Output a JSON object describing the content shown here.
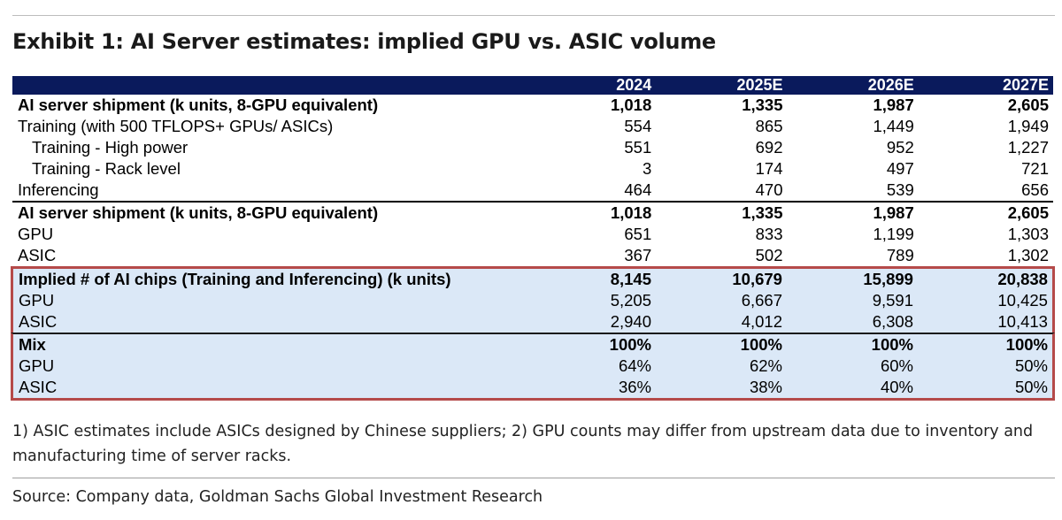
{
  "title": "Exhibit 1: AI Server estimates: implied GPU vs. ASIC volume",
  "columns": [
    "2024",
    "2025E",
    "2026E",
    "2027E"
  ],
  "section1": [
    {
      "label": "AI server shipment (k units, 8-GPU equivalent)",
      "values": [
        "1,018",
        "1,335",
        "1,987",
        "2,605"
      ]
    },
    {
      "label": "Training (with 500 TFLOPS+ GPUs/ ASICs)",
      "values": [
        "554",
        "865",
        "1,449",
        "1,949"
      ]
    },
    {
      "label": "Training - High power",
      "values": [
        "551",
        "692",
        "952",
        "1,227"
      ]
    },
    {
      "label": "Training - Rack level",
      "values": [
        "3",
        "174",
        "497",
        "721"
      ]
    },
    {
      "label": "Inferencing",
      "values": [
        "464",
        "470",
        "539",
        "656"
      ]
    }
  ],
  "section2": [
    {
      "label": "AI server shipment (k units, 8-GPU equivalent)",
      "values": [
        "1,018",
        "1,335",
        "1,987",
        "2,605"
      ]
    },
    {
      "label": "GPU",
      "values": [
        "651",
        "833",
        "1,199",
        "1,303"
      ]
    },
    {
      "label": "ASIC",
      "values": [
        "367",
        "502",
        "789",
        "1,302"
      ]
    }
  ],
  "section3": [
    {
      "label": "Implied # of AI chips (Training and Inferencing) (k units)",
      "values": [
        "8,145",
        "10,679",
        "15,899",
        "20,838"
      ]
    },
    {
      "label": "GPU",
      "values": [
        "5,205",
        "6,667",
        "9,591",
        "10,425"
      ]
    },
    {
      "label": "ASIC",
      "values": [
        "2,940",
        "4,012",
        "6,308",
        "10,413"
      ]
    }
  ],
  "section4": [
    {
      "label": "Mix",
      "values": [
        "100%",
        "100%",
        "100%",
        "100%"
      ]
    },
    {
      "label": "GPU",
      "values": [
        "64%",
        "62%",
        "60%",
        "50%"
      ]
    },
    {
      "label": "ASIC",
      "values": [
        "36%",
        "38%",
        "40%",
        "50%"
      ]
    }
  ],
  "notes": "1) ASIC estimates include ASICs designed by Chinese suppliers; 2) GPU counts may differ from upstream data due to inventory and manufacturing time of server racks.",
  "source": "Source: Company data, Goldman Sachs Global Investment Research",
  "colors": {
    "header_bg": "#0a1a5c",
    "highlight_bg": "#dbe8f7",
    "highlight_border": "#b54a4a"
  }
}
